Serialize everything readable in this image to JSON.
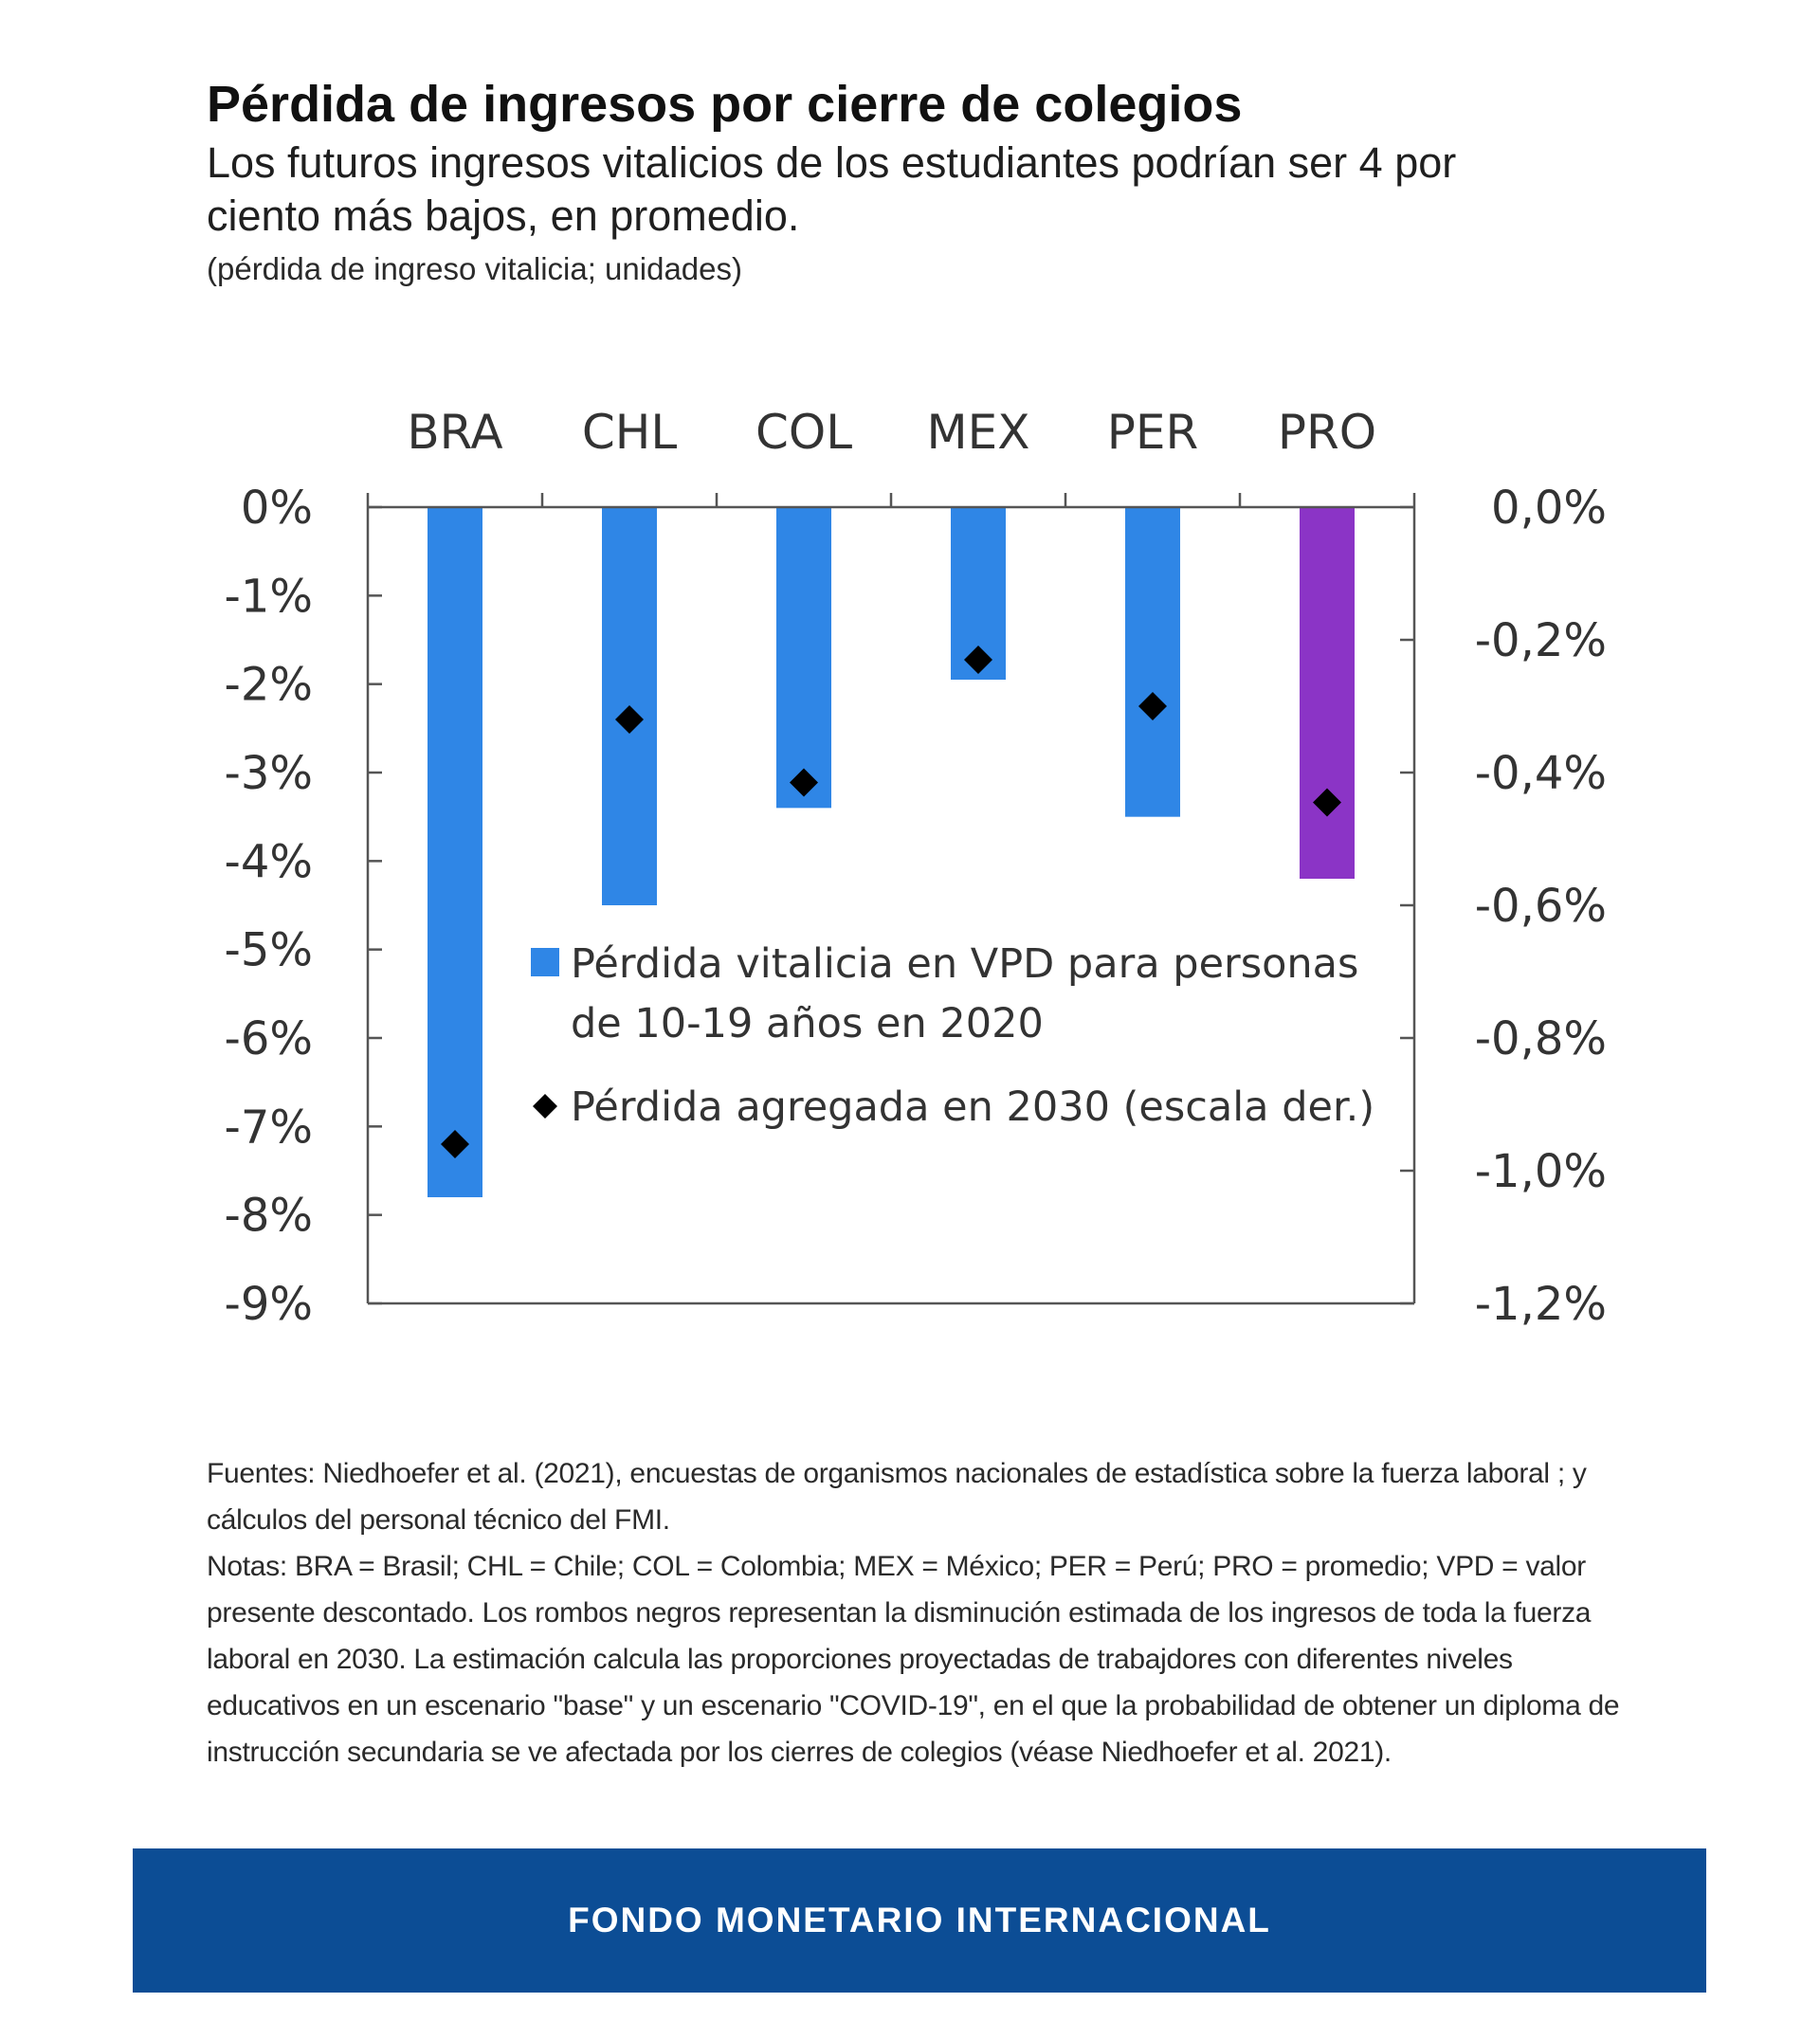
{
  "header": {
    "title": "Pérdida de ingresos por cierre de colegios",
    "subtitle": "Los futuros ingresos vitalicios de los estudiantes podrían ser 4 por ciento más bajos, en promedio.",
    "units": "(pérdida de ingreso vitalicia; unidades)"
  },
  "chart_data": {
    "type": "bar",
    "categories": [
      "BRA",
      "CHL",
      "COL",
      "MEX",
      "PER",
      "PRO"
    ],
    "series": [
      {
        "name": "Pérdida vitalicia en VPD para personas de 10-19 años en 2020",
        "axis": "left",
        "values": [
          -7.8,
          -4.5,
          -3.4,
          -1.95,
          -3.5,
          -4.2
        ],
        "colors": [
          "#2f86e6",
          "#2f86e6",
          "#2f86e6",
          "#2f86e6",
          "#2f86e6",
          "#8b34c6"
        ]
      },
      {
        "name": "Pérdida agregada en 2030 (escala der.)",
        "axis": "right",
        "marker": "diamond",
        "values": [
          -0.96,
          -0.32,
          -0.415,
          -0.23,
          -0.3,
          -0.445
        ]
      }
    ],
    "y_left": {
      "ylim": [
        -9,
        0
      ],
      "ticks": [
        0,
        -1,
        -2,
        -3,
        -4,
        -5,
        -6,
        -7,
        -8,
        -9
      ],
      "tick_labels": [
        "0%",
        "-1%",
        "-2%",
        "-3%",
        "-4%",
        "-5%",
        "-6%",
        "-7%",
        "-8%",
        "-9%"
      ]
    },
    "y_right": {
      "ylim": [
        -1.2,
        0
      ],
      "ticks": [
        0,
        -0.2,
        -0.4,
        -0.6,
        -0.8,
        -1.0,
        -1.2
      ],
      "tick_labels": [
        "0,0%",
        "-0,2%",
        "-0,4%",
        "-0,6%",
        "-0,8%",
        "-1,0%",
        "-1,2%"
      ]
    },
    "legend": {
      "placement": "center",
      "bar_label_lines": [
        "Pérdida vitalicia en VPD para personas",
        "de 10-19 años en 2020"
      ],
      "marker_label": "Pérdida agregada en 2030 (escala der.)"
    },
    "x_axis_position": "top",
    "grid": false,
    "colors": {
      "bar": "#2f86e6",
      "bar_average": "#8b34c6",
      "marker": "#000000"
    }
  },
  "notes": {
    "sources": "Fuentes: Niedhoefer et al. (2021), encuestas de organismos nacionales de estadística sobre la fuerza laboral ; y cálculos del personal técnico del FMI.",
    "notes": "Notas: BRA = Brasil; CHL = Chile; COL = Colombia; MEX = México; PER = Perú; PRO = promedio; VPD = valor presente descontado. Los rombos negros representan la disminución estimada de los ingresos de toda la fuerza laboral en 2030. La estimación calcula las proporciones proyectadas de trabajdores con diferentes niveles educativos en un escenario \"base\" y un escenario \"COVID-19\", en el que la probabilidad de obtener un diploma de instrucción secundaria se ve afectada por los cierres de colegios (véase Niedhoefer et al. 2021)."
  },
  "footer": {
    "text": "FONDO MONETARIO INTERNACIONAL"
  }
}
